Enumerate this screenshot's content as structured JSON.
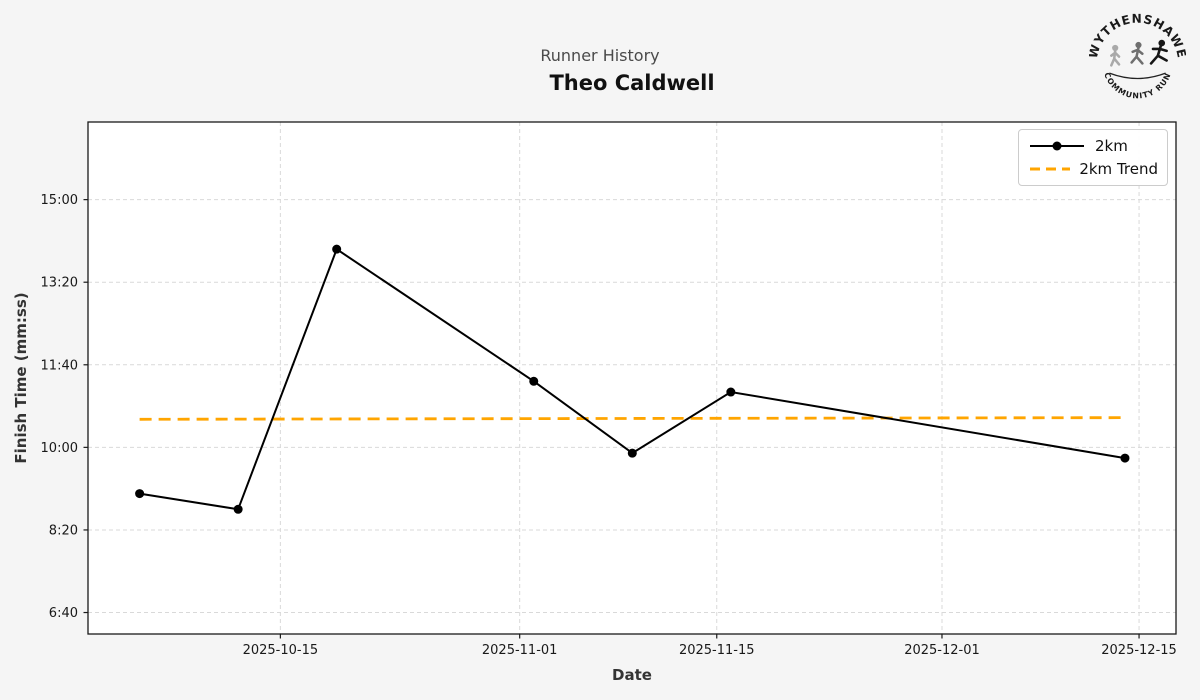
{
  "header": {
    "suptitle": "Runner History",
    "title": "Theo Caldwell"
  },
  "logo": {
    "top_text": "WYTHENSHAWE",
    "bottom_text": "COMMUNITY RUN"
  },
  "legend": {
    "items": [
      {
        "label": "2km",
        "style": "solid-marker",
        "color": "#000000"
      },
      {
        "label": "2km Trend",
        "style": "dashed",
        "color": "#FFA500"
      }
    ]
  },
  "chart_data": {
    "type": "line",
    "suptitle": "Runner History",
    "title": "Theo Caldwell",
    "xlabel": "Date",
    "ylabel": "Finish Time (mm:ss)",
    "grid": true,
    "legend_position": "upper right",
    "x_ticks": [
      "2025-10-15",
      "2025-11-01",
      "2025-11-15",
      "2025-12-01",
      "2025-12-15"
    ],
    "y_ticks": [
      {
        "label": "6:40",
        "seconds": 400
      },
      {
        "label": "8:20",
        "seconds": 500
      },
      {
        "label": "10:00",
        "seconds": 600
      },
      {
        "label": "11:40",
        "seconds": 700
      },
      {
        "label": "13:20",
        "seconds": 800
      },
      {
        "label": "15:00",
        "seconds": 900
      }
    ],
    "x_domain": [
      "2025-10-01T08:00:00Z",
      "2025-12-17T15:00:00Z"
    ],
    "y_domain_seconds": [
      374,
      994
    ],
    "series": [
      {
        "name": "2km",
        "color": "#000000",
        "points": [
          {
            "date": "2025-10-05",
            "time": "9:04",
            "seconds": 544
          },
          {
            "date": "2025-10-12",
            "time": "8:45",
            "seconds": 525
          },
          {
            "date": "2025-10-19",
            "time": "14:00",
            "seconds": 840
          },
          {
            "date": "2025-11-02",
            "time": "11:20",
            "seconds": 680
          },
          {
            "date": "2025-11-09",
            "time": "9:53",
            "seconds": 593
          },
          {
            "date": "2025-11-16",
            "time": "11:07",
            "seconds": 667
          },
          {
            "date": "2025-12-14",
            "time": "9:47",
            "seconds": 587
          }
        ]
      }
    ],
    "trend": {
      "name": "2km Trend",
      "color": "#FFA500",
      "start": {
        "date": "2025-10-05",
        "time": "10:34",
        "seconds": 634
      },
      "end": {
        "date": "2025-12-14",
        "time": "10:36",
        "seconds": 636
      }
    },
    "colors": {
      "line": "#000000",
      "trend": "#FFA500",
      "figure_bg": "#f5f5f5",
      "plot_bg": "#ffffff",
      "grid": "#d9d9d9"
    }
  }
}
